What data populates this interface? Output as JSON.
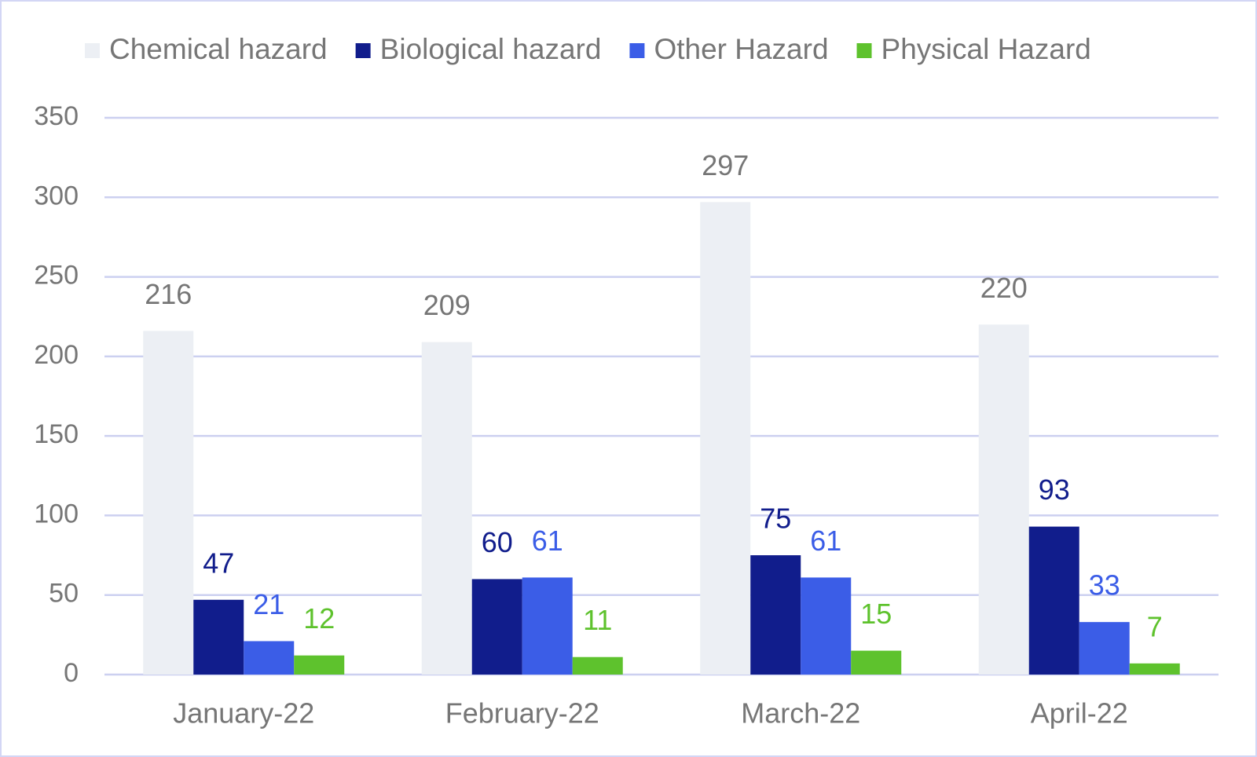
{
  "chart_data": {
    "type": "bar",
    "categories": [
      "January-22",
      "February-22",
      "March-22",
      "April-22"
    ],
    "series": [
      {
        "name": "Chemical hazard",
        "color": "#eceff4",
        "label_color": "#767676",
        "values": [
          216,
          209,
          297,
          220
        ]
      },
      {
        "name": "Biological hazard",
        "color": "#111d8c",
        "label_color": "#111d8c",
        "values": [
          47,
          60,
          75,
          93
        ]
      },
      {
        "name": "Other Hazard",
        "color": "#3b5de7",
        "label_color": "#3b5de7",
        "values": [
          21,
          61,
          61,
          33
        ]
      },
      {
        "name": "Physical Hazard",
        "color": "#5ec22d",
        "label_color": "#5ec22d",
        "values": [
          12,
          11,
          15,
          7
        ]
      }
    ],
    "ylim": [
      0,
      350
    ],
    "yticks": [
      0,
      50,
      100,
      150,
      200,
      250,
      300,
      350
    ],
    "grid": true,
    "legend": "top"
  }
}
